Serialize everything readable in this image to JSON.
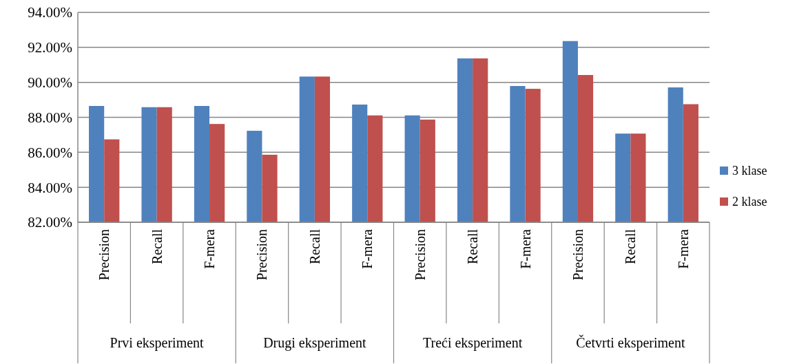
{
  "chart_data": {
    "type": "bar",
    "categories": [
      "Precision",
      "Recall",
      "F-mera",
      "Precision",
      "Recall",
      "F-mera",
      "Precision",
      "Recall",
      "F-mera",
      "Precision",
      "Recall",
      "F-mera"
    ],
    "series": [
      {
        "name": "3 klase",
        "color": "#4f81bd",
        "values": [
          88.65,
          88.58,
          88.65,
          87.23,
          90.33,
          88.73,
          88.11,
          91.37,
          89.79,
          92.36,
          87.07,
          89.71
        ]
      },
      {
        "name": "2 klase",
        "color": "#c0504d",
        "values": [
          86.74,
          88.58,
          87.62,
          85.86,
          90.33,
          88.11,
          87.87,
          91.37,
          89.63,
          90.42,
          87.07,
          88.75
        ]
      }
    ],
    "ylim": [
      82,
      94
    ],
    "yticks": [
      {
        "value": 82,
        "label": "82.00%"
      },
      {
        "value": 84,
        "label": "84.00%"
      },
      {
        "value": 86,
        "label": "86.00%"
      },
      {
        "value": 88,
        "label": "88.00%"
      },
      {
        "value": 90,
        "label": "90.00%"
      },
      {
        "value": 92,
        "label": "92.00%"
      },
      {
        "value": 94,
        "label": "94.00%"
      }
    ],
    "grid": "y",
    "legend": "right",
    "annotations": [
      "Prvi eksperiment",
      "Drugi eksperiment",
      "Treći eksperiment",
      "Četvrti eksperiment"
    ]
  }
}
